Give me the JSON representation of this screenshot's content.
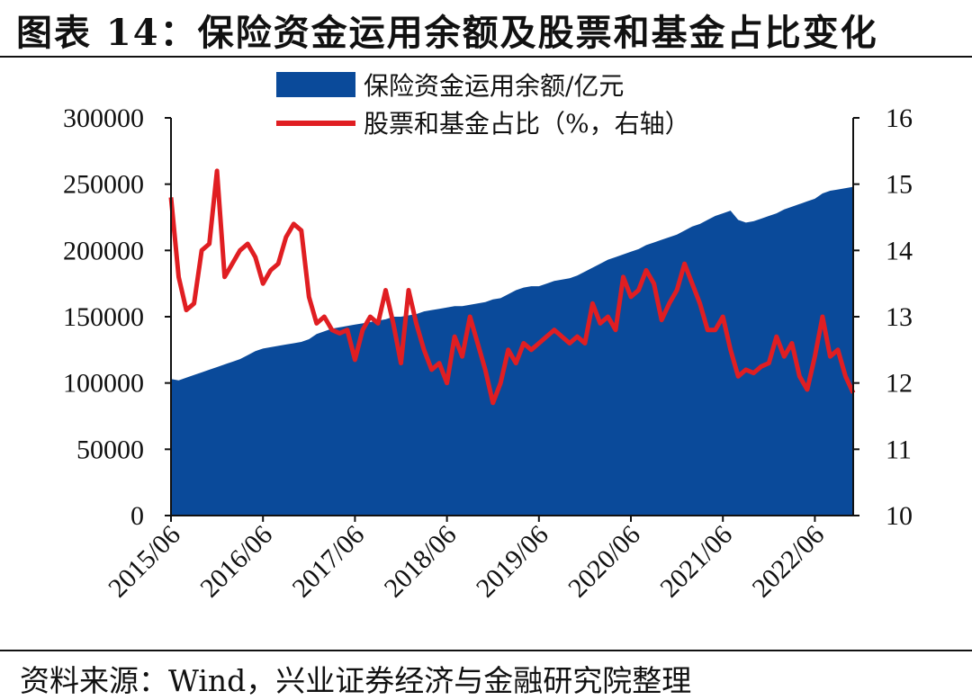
{
  "header": {
    "title": "图表 14：保险资金运用余额及股票和基金占比变化"
  },
  "footer": {
    "source": "资料来源：Wind，兴业证券经济与金融研究院整理"
  },
  "colors": {
    "area": "#0a4a9a",
    "line": "#e01e22",
    "axis": "#111111"
  },
  "chart_data": {
    "type": "area",
    "legend_position": "top",
    "grid": false,
    "x_tick_labels": [
      "2015/06",
      "2016/06",
      "2017/06",
      "2018/06",
      "2019/06",
      "2020/06",
      "2021/06",
      "2022/06"
    ],
    "x": [
      "2015/06",
      "2015/07",
      "2015/08",
      "2015/09",
      "2015/10",
      "2015/11",
      "2015/12",
      "2016/01",
      "2016/02",
      "2016/03",
      "2016/04",
      "2016/05",
      "2016/06",
      "2016/07",
      "2016/08",
      "2016/09",
      "2016/10",
      "2016/11",
      "2016/12",
      "2017/01",
      "2017/02",
      "2017/03",
      "2017/04",
      "2017/05",
      "2017/06",
      "2017/07",
      "2017/08",
      "2017/09",
      "2017/10",
      "2017/11",
      "2017/12",
      "2018/01",
      "2018/02",
      "2018/03",
      "2018/04",
      "2018/05",
      "2018/06",
      "2018/07",
      "2018/08",
      "2018/09",
      "2018/10",
      "2018/11",
      "2018/12",
      "2019/01",
      "2019/02",
      "2019/03",
      "2019/04",
      "2019/05",
      "2019/06",
      "2019/07",
      "2019/08",
      "2019/09",
      "2019/10",
      "2019/11",
      "2019/12",
      "2020/01",
      "2020/02",
      "2020/03",
      "2020/04",
      "2020/05",
      "2020/06",
      "2020/07",
      "2020/08",
      "2020/09",
      "2020/10",
      "2020/11",
      "2020/12",
      "2021/01",
      "2021/02",
      "2021/03",
      "2021/04",
      "2021/05",
      "2021/06",
      "2021/07",
      "2021/08",
      "2021/09",
      "2021/10",
      "2021/11",
      "2021/12",
      "2022/01",
      "2022/02",
      "2022/03",
      "2022/04",
      "2022/05",
      "2022/06",
      "2022/07",
      "2022/08",
      "2022/09",
      "2022/10",
      "2022/11"
    ],
    "y_left": {
      "ylim": [
        0,
        300000
      ],
      "ticks": [
        0,
        50000,
        100000,
        150000,
        200000,
        250000,
        300000
      ]
    },
    "y_right": {
      "ylim": [
        10,
        16
      ],
      "ticks": [
        10,
        11,
        12,
        13,
        14,
        15,
        16
      ]
    },
    "series": [
      {
        "name": "保险资金运用余额/亿元",
        "type": "area",
        "axis": "left",
        "values": [
          103000,
          102000,
          104000,
          106000,
          108000,
          110000,
          112000,
          114000,
          116000,
          118000,
          121000,
          124000,
          126000,
          127000,
          128000,
          129000,
          130000,
          131000,
          133000,
          137000,
          139000,
          141000,
          142000,
          143000,
          144000,
          145000,
          146000,
          147000,
          148000,
          150000,
          150000,
          151000,
          152000,
          154000,
          155000,
          156000,
          157000,
          158000,
          158000,
          159000,
          160000,
          161000,
          163000,
          164000,
          167000,
          170000,
          172000,
          173000,
          173000,
          175000,
          177000,
          178000,
          179000,
          181000,
          184000,
          187000,
          190000,
          193000,
          195000,
          197000,
          199000,
          201000,
          204000,
          206000,
          208000,
          210000,
          212000,
          215000,
          218000,
          220000,
          223000,
          226000,
          228000,
          230000,
          223000,
          221000,
          222000,
          224000,
          226000,
          228000,
          231000,
          233000,
          235000,
          237000,
          239000,
          243000,
          245000,
          246000,
          247000,
          248000
        ]
      },
      {
        "name": "股票和基金占比（%，右轴）",
        "type": "line",
        "axis": "right",
        "values": [
          14.8,
          13.6,
          13.1,
          13.2,
          14.0,
          14.1,
          15.2,
          13.6,
          13.8,
          14.0,
          14.1,
          13.9,
          13.5,
          13.7,
          13.8,
          14.2,
          14.4,
          14.3,
          13.3,
          12.9,
          13.0,
          12.8,
          12.75,
          12.8,
          12.35,
          12.8,
          13.0,
          12.9,
          13.4,
          12.9,
          12.3,
          13.4,
          12.9,
          12.5,
          12.2,
          12.3,
          12.0,
          12.7,
          12.4,
          13.0,
          12.6,
          12.2,
          11.7,
          12.0,
          12.5,
          12.3,
          12.6,
          12.5,
          12.6,
          12.7,
          12.8,
          12.7,
          12.6,
          12.7,
          12.6,
          13.2,
          12.9,
          13.0,
          12.8,
          13.6,
          13.3,
          13.4,
          13.7,
          13.5,
          12.95,
          13.2,
          13.4,
          13.8,
          13.5,
          13.2,
          12.8,
          12.8,
          13.0,
          12.5,
          12.1,
          12.2,
          12.15,
          12.25,
          12.3,
          12.7,
          12.4,
          12.6,
          12.1,
          11.9,
          12.4,
          13.0,
          12.4,
          12.5,
          12.1,
          11.85
        ]
      }
    ]
  }
}
